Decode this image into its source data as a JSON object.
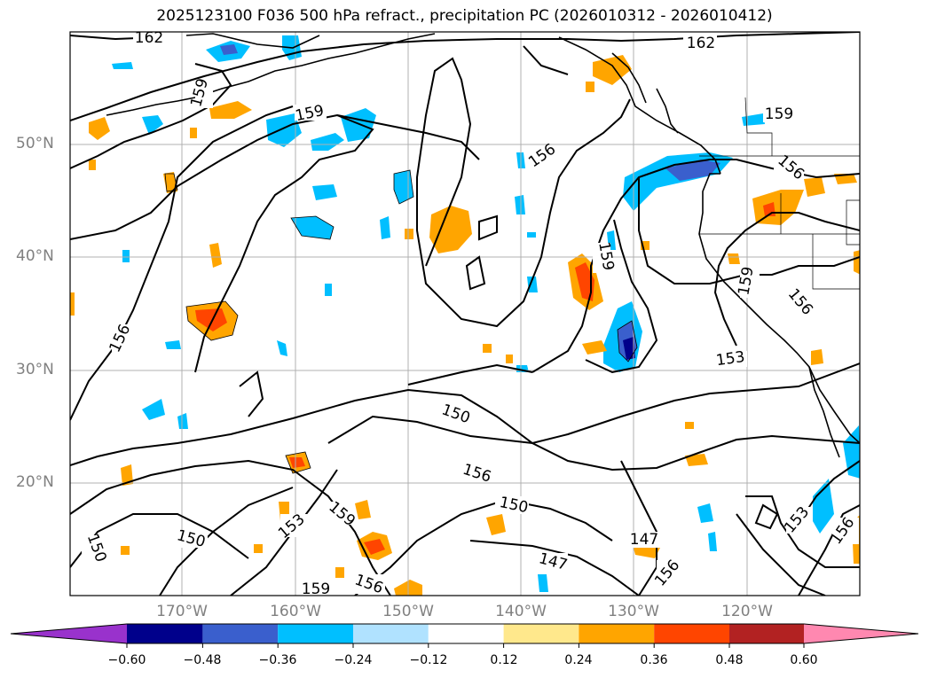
{
  "title": "2025123100 F036 500 hPa refract., precipitation PC (2026010312 - 2026010412)",
  "map": {
    "lat_labels": [
      "50°N",
      "40°N",
      "30°N",
      "20°N"
    ],
    "lon_labels": [
      "170°W",
      "160°W",
      "150°W",
      "140°W",
      "130°W",
      "120°W"
    ],
    "contour_labels": [
      "162",
      "159",
      "159",
      "162",
      "159",
      "156",
      "156",
      "159",
      "156",
      "159",
      "156",
      "153",
      "150",
      "156",
      "150",
      "159",
      "153",
      "150",
      "156",
      "147",
      "147",
      "153",
      "156",
      "159",
      "150",
      "156"
    ],
    "contour_color": "#000000",
    "coastline_color": "#000000",
    "gridline_color": "#b0b0b0"
  },
  "colorbar": {
    "labels": [
      "−0.60",
      "−0.48",
      "−0.36",
      "−0.24",
      "−0.12",
      "0.12",
      "0.24",
      "0.36",
      "0.48",
      "0.60"
    ],
    "colors": [
      "#9932cc",
      "#00008b",
      "#3a5fcd",
      "#00bfff",
      "#b0e2ff",
      "#ffffff",
      "#ffe88c",
      "#ffa500",
      "#ff4500",
      "#b22222",
      "#ff88b0"
    ]
  }
}
